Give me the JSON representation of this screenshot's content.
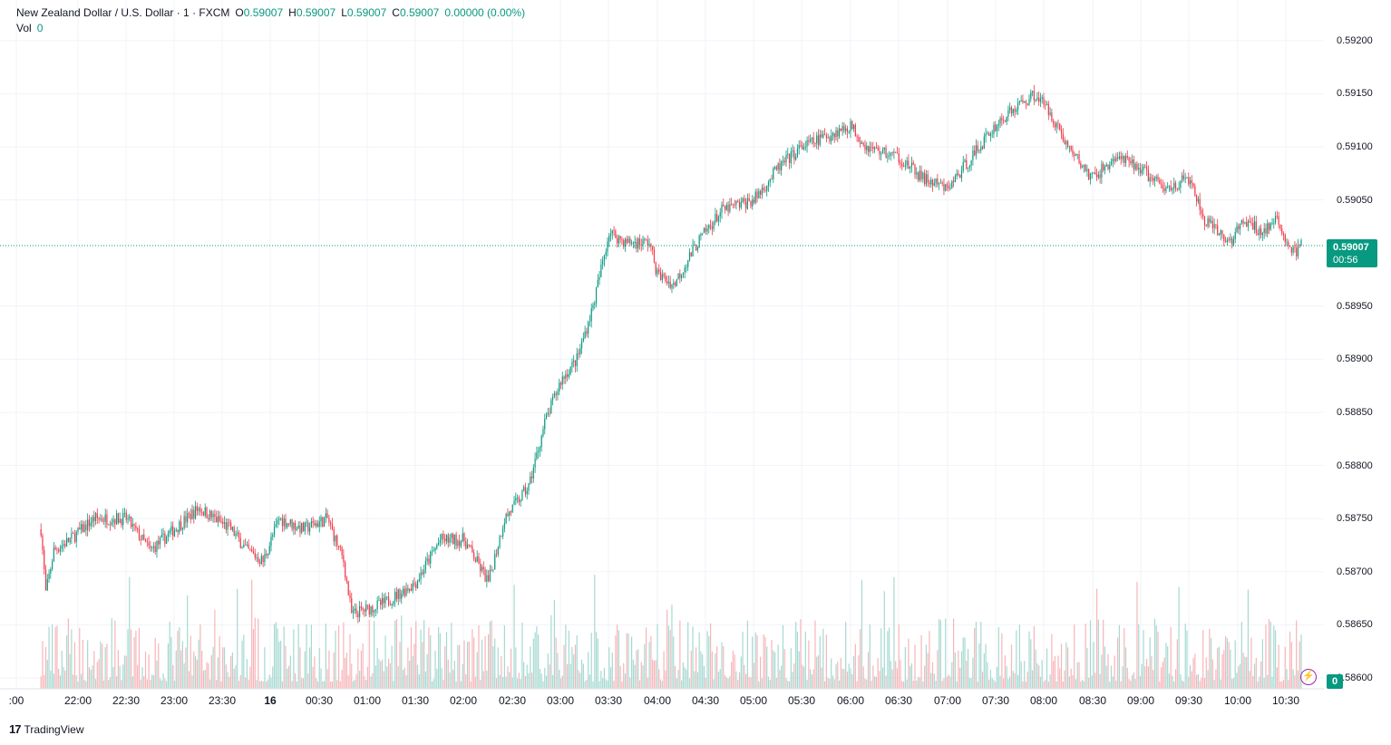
{
  "legend": {
    "symbol": "New Zealand Dollar / U.S. Dollar · 1 · FXCM",
    "o_label": "O",
    "o_value": "0.59007",
    "h_label": "H",
    "h_value": "0.59007",
    "l_label": "L",
    "l_value": "0.59007",
    "c_label": "C",
    "c_value": "0.59007",
    "change": "0.00000 (0.00%)",
    "vol_label": "Vol",
    "vol_value": "0"
  },
  "price_tag": {
    "price": "0.59007",
    "countdown": "00:56"
  },
  "volume_tag": "0",
  "brand": {
    "logo": "17",
    "name": "TradingView"
  },
  "colors": {
    "up": "#089981",
    "down": "#f23645",
    "up_vol": "#a6d9d1",
    "down_vol": "#f7b5b9",
    "grid": "#f0f3fa",
    "last_line": "#089981"
  },
  "icons": {
    "bolt": "lightning-icon",
    "brand": "tradingview-logo-icon"
  },
  "chart_data": {
    "type": "candlestick",
    "title": "New Zealand Dollar / U.S. Dollar · 1 · FXCM",
    "ylim": [
      0.586,
      0.5922
    ],
    "y_ticks": [
      "0.59200",
      "0.59150",
      "0.59100",
      "0.59050",
      "0.58950",
      "0.58900",
      "0.58850",
      "0.58800",
      "0.58750",
      "0.58700",
      "0.58650",
      "0.58600"
    ],
    "x_ticks": [
      ":00",
      "22:00",
      "22:30",
      "23:00",
      "23:30",
      "16",
      "00:30",
      "01:00",
      "01:30",
      "02:00",
      "02:30",
      "03:00",
      "03:30",
      "04:00",
      "04:30",
      "05:00",
      "05:30",
      "06:00",
      "06:30",
      "07:00",
      "07:30",
      "08:00",
      "08:30",
      "09:00",
      "09:30",
      "10:00",
      "10:30"
    ],
    "last_price": 0.59007,
    "close_path": [
      {
        "t": "21:37",
        "close": 0.5874
      },
      {
        "t": "21:40",
        "close": 0.5868
      },
      {
        "t": "21:45",
        "close": 0.5872
      },
      {
        "t": "21:55",
        "close": 0.5873
      },
      {
        "t": "22:10",
        "close": 0.5875
      },
      {
        "t": "22:30",
        "close": 0.5875
      },
      {
        "t": "22:45",
        "close": 0.5872
      },
      {
        "t": "23:00",
        "close": 0.5874
      },
      {
        "t": "23:15",
        "close": 0.5876
      },
      {
        "t": "23:35",
        "close": 0.5874
      },
      {
        "t": "23:45",
        "close": 0.5872
      },
      {
        "t": "23:55",
        "close": 0.5871
      },
      {
        "t": "00:05",
        "close": 0.5875
      },
      {
        "t": "00:20",
        "close": 0.5874
      },
      {
        "t": "00:35",
        "close": 0.5875
      },
      {
        "t": "00:45",
        "close": 0.5871
      },
      {
        "t": "00:50",
        "close": 0.5866
      },
      {
        "t": "01:10",
        "close": 0.5867
      },
      {
        "t": "01:30",
        "close": 0.5869
      },
      {
        "t": "01:45",
        "close": 0.5873
      },
      {
        "t": "02:00",
        "close": 0.5873
      },
      {
        "t": "02:15",
        "close": 0.5869
      },
      {
        "t": "02:25",
        "close": 0.5875
      },
      {
        "t": "02:40",
        "close": 0.5878
      },
      {
        "t": "02:50",
        "close": 0.5884
      },
      {
        "t": "03:00",
        "close": 0.5888
      },
      {
        "t": "03:10",
        "close": 0.589
      },
      {
        "t": "03:20",
        "close": 0.5895
      },
      {
        "t": "03:30",
        "close": 0.5902
      },
      {
        "t": "03:40",
        "close": 0.5901
      },
      {
        "t": "03:55",
        "close": 0.5901
      },
      {
        "t": "04:00",
        "close": 0.5898
      },
      {
        "t": "04:10",
        "close": 0.5897
      },
      {
        "t": "04:25",
        "close": 0.5901
      },
      {
        "t": "04:40",
        "close": 0.5904
      },
      {
        "t": "05:00",
        "close": 0.5905
      },
      {
        "t": "05:15",
        "close": 0.5908
      },
      {
        "t": "05:30",
        "close": 0.591
      },
      {
        "t": "05:45",
        "close": 0.5911
      },
      {
        "t": "06:00",
        "close": 0.5912
      },
      {
        "t": "06:10",
        "close": 0.591
      },
      {
        "t": "06:30",
        "close": 0.5909
      },
      {
        "t": "06:45",
        "close": 0.5907
      },
      {
        "t": "07:00",
        "close": 0.5906
      },
      {
        "t": "07:15",
        "close": 0.5909
      },
      {
        "t": "07:30",
        "close": 0.5912
      },
      {
        "t": "07:45",
        "close": 0.5914
      },
      {
        "t": "07:55",
        "close": 0.5915
      },
      {
        "t": "08:05",
        "close": 0.5913
      },
      {
        "t": "08:15",
        "close": 0.591
      },
      {
        "t": "08:30",
        "close": 0.5907
      },
      {
        "t": "08:45",
        "close": 0.5909
      },
      {
        "t": "09:00",
        "close": 0.5908
      },
      {
        "t": "09:15",
        "close": 0.5906
      },
      {
        "t": "09:30",
        "close": 0.5907
      },
      {
        "t": "09:40",
        "close": 0.5903
      },
      {
        "t": "09:55",
        "close": 0.5901
      },
      {
        "t": "10:05",
        "close": 0.5903
      },
      {
        "t": "10:15",
        "close": 0.5902
      },
      {
        "t": "10:25",
        "close": 0.5903
      },
      {
        "t": "10:35",
        "close": 0.59
      },
      {
        "t": "10:40",
        "close": 0.59007
      }
    ]
  }
}
